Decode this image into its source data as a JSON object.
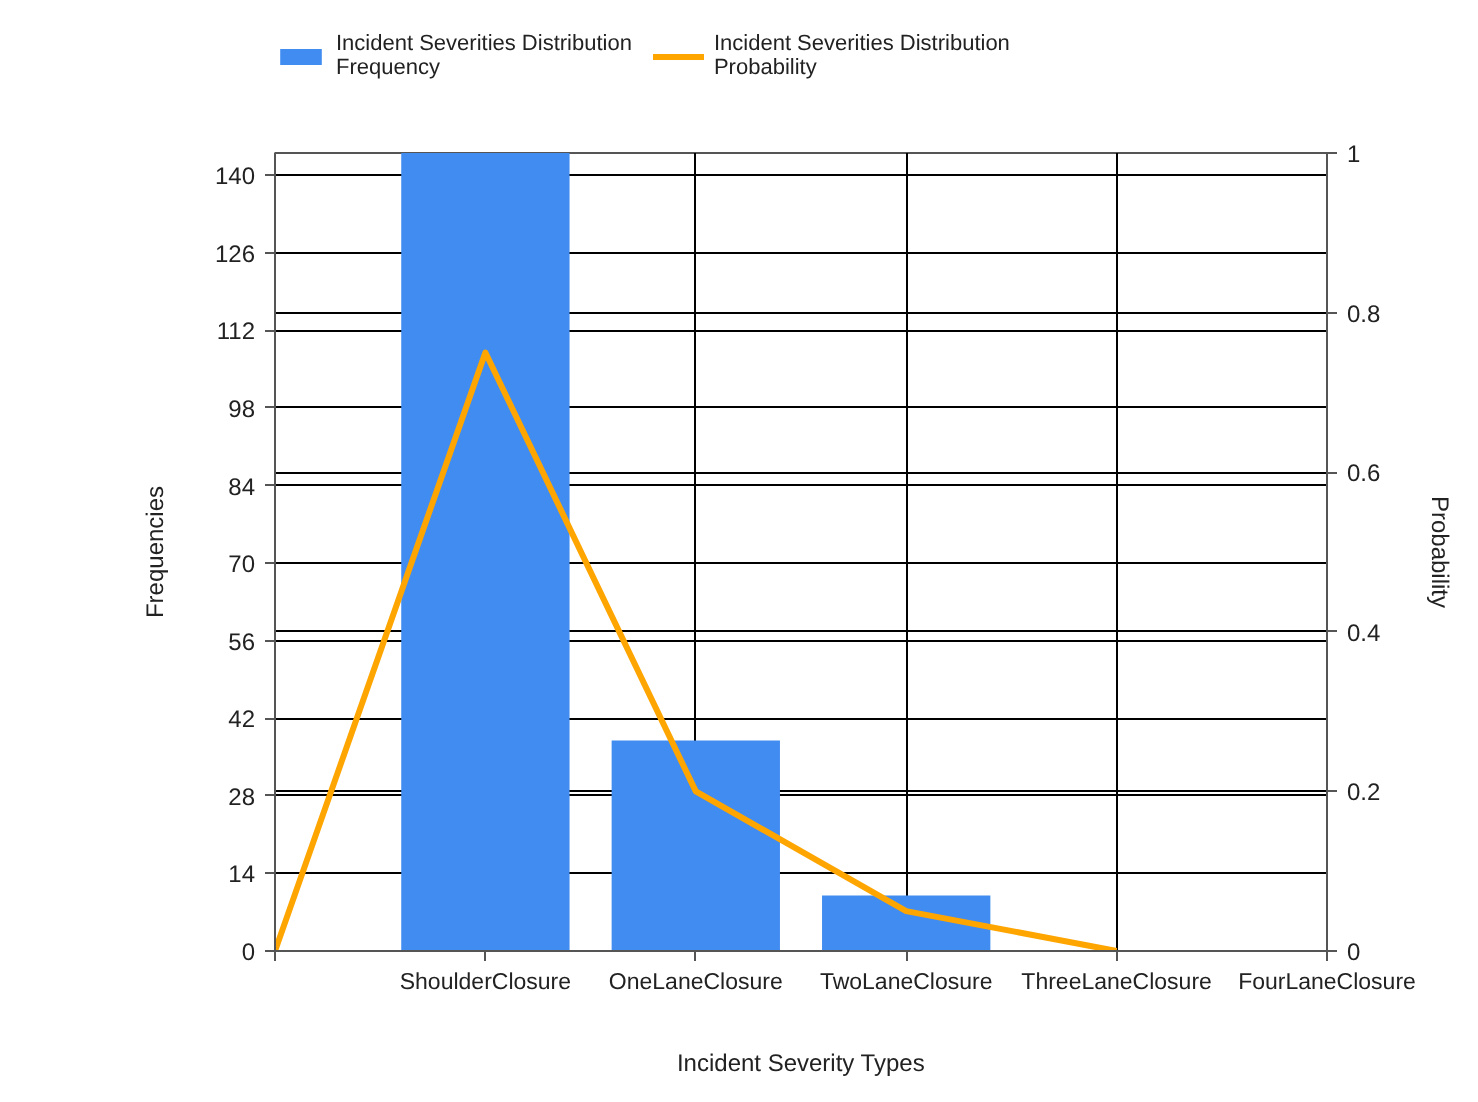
{
  "chart_data": {
    "type": "bar",
    "xlabel": "Incident Severity Types",
    "ylabel": "Frequencies",
    "y2label": "Probability",
    "categories": [
      null,
      "ShoulderClosure",
      "OneLaneClosure",
      "TwoLaneClosure",
      "ThreeLaneClosure",
      "FourLaneClosure"
    ],
    "series": [
      {
        "name": "Incident Severities Distribution Frequency",
        "color": "#418cf0",
        "values": [
          null,
          144,
          38,
          10,
          0,
          0
        ]
      },
      {
        "name": "Incident Severities Distribution Probability",
        "type": "line",
        "axis": "y2",
        "color": "#ffa500",
        "values": [
          0,
          0.75,
          0.2,
          0.05,
          0,
          null
        ]
      }
    ],
    "ylim": [
      0,
      144
    ],
    "yticks": [
      0,
      14,
      28,
      42,
      56,
      70,
      84,
      98,
      112,
      126,
      140
    ],
    "y2lim": [
      0,
      1
    ],
    "y2ticks": [
      0,
      0.2,
      0.4,
      0.6,
      0.8,
      1
    ],
    "grid": true,
    "legend": "top left"
  }
}
